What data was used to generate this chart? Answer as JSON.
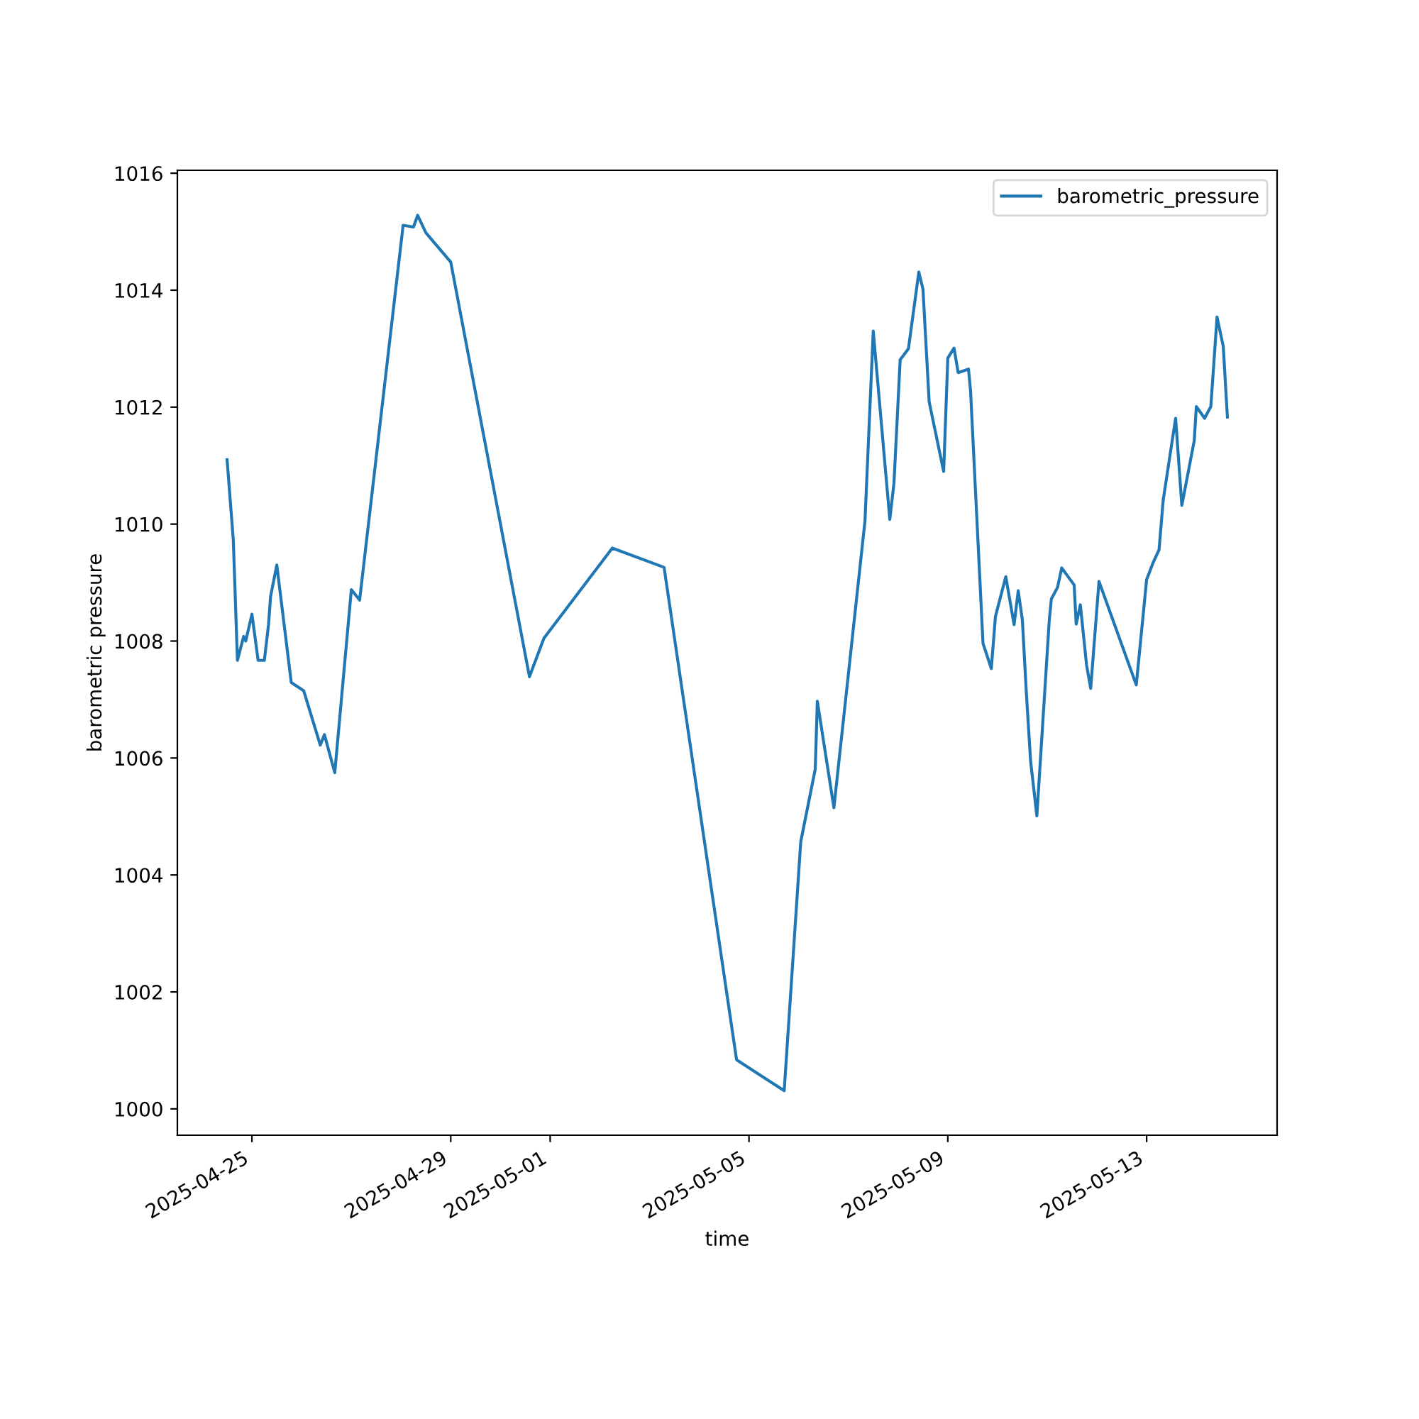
{
  "chart_data": {
    "type": "line",
    "xlabel": "time",
    "ylabel": "barometric pressure",
    "x": [
      "2025-04-24T12:00",
      "2025-04-24T15:00",
      "2025-04-24T17:00",
      "2025-04-24T20:00",
      "2025-04-24T21:00",
      "2025-04-25T00:00",
      "2025-04-25T03:00",
      "2025-04-25T06:00",
      "2025-04-25T08:00",
      "2025-04-25T09:00",
      "2025-04-25T12:00",
      "2025-04-25T19:00",
      "2025-04-26T01:00",
      "2025-04-26T09:00",
      "2025-04-26T11:00",
      "2025-04-26T16:00",
      "2025-04-27T00:00",
      "2025-04-27T04:00",
      "2025-04-28T01:00",
      "2025-04-28T06:00",
      "2025-04-28T08:00",
      "2025-04-28T12:00",
      "2025-04-29T00:00",
      "2025-04-30T14:00",
      "2025-04-30T21:00",
      "2025-05-02T06:00",
      "2025-05-03T07:00",
      "2025-05-04T18:00",
      "2025-05-05T17:00",
      "2025-05-06T01:00",
      "2025-05-06T08:00",
      "2025-05-06T09:00",
      "2025-05-06T17:00",
      "2025-05-07T08:00",
      "2025-05-07T12:00",
      "2025-05-07T20:00",
      "2025-05-07T22:00",
      "2025-05-08T01:00",
      "2025-05-08T05:00",
      "2025-05-08T10:00",
      "2025-05-08T12:00",
      "2025-05-08T15:00",
      "2025-05-08T22:00",
      "2025-05-09T00:00",
      "2025-05-09T03:00",
      "2025-05-09T05:00",
      "2025-05-09T10:00",
      "2025-05-09T11:00",
      "2025-05-09T17:00",
      "2025-05-09T21:00",
      "2025-05-09T23:00",
      "2025-05-10T04:00",
      "2025-05-10T08:00",
      "2025-05-10T10:00",
      "2025-05-10T12:00",
      "2025-05-10T14:00",
      "2025-05-10T16:00",
      "2025-05-10T19:00",
      "2025-05-11T01:00",
      "2025-05-11T02:00",
      "2025-05-11T05:00",
      "2025-05-11T07:00",
      "2025-05-11T13:00",
      "2025-05-11T14:00",
      "2025-05-11T16:00",
      "2025-05-11T19:00",
      "2025-05-11T21:00",
      "2025-05-12T01:00",
      "2025-05-12T19:00",
      "2025-05-13T00:00",
      "2025-05-13T03:00",
      "2025-05-13T06:00",
      "2025-05-13T08:00",
      "2025-05-13T14:00",
      "2025-05-13T17:00",
      "2025-05-13T23:00",
      "2025-05-14T00:00",
      "2025-05-14T04:00",
      "2025-05-14T07:00",
      "2025-05-14T10:00",
      "2025-05-14T13:00",
      "2025-05-14T15:00"
    ],
    "series": [
      {
        "name": "barometric_pressure",
        "color": "#1f77b4",
        "values": [
          1011.1,
          1009.73,
          1007.67,
          1008.08,
          1008.0,
          1008.46,
          1007.67,
          1007.67,
          1008.28,
          1008.76,
          1009.3,
          1007.29,
          1007.15,
          1006.22,
          1006.4,
          1005.75,
          1008.88,
          1008.7,
          1015.11,
          1015.08,
          1015.28,
          1014.98,
          1014.48,
          1007.39,
          1008.05,
          1009.59,
          1009.26,
          1000.84,
          1000.31,
          1004.57,
          1005.81,
          1006.97,
          1005.15,
          1010.05,
          1013.3,
          1010.08,
          1010.7,
          1012.81,
          1013.0,
          1014.31,
          1014.02,
          1012.09,
          1010.9,
          1012.84,
          1013.01,
          1012.59,
          1012.65,
          1012.27,
          1007.96,
          1007.53,
          1008.42,
          1009.1,
          1008.28,
          1008.86,
          1008.36,
          1007.07,
          1005.94,
          1005.01,
          1008.36,
          1008.72,
          1008.92,
          1009.25,
          1008.96,
          1008.29,
          1008.62,
          1007.59,
          1007.19,
          1009.02,
          1007.25,
          1009.05,
          1009.33,
          1009.56,
          1010.41,
          1011.81,
          1010.32,
          1011.43,
          1012.01,
          1011.81,
          1012.01,
          1013.54,
          1013.04,
          1011.83
        ]
      }
    ],
    "xlim": [
      "2025-04-23T12:00",
      "2025-05-15T15:00"
    ],
    "xticks": [
      "2025-04-25",
      "2025-04-29",
      "2025-05-01",
      "2025-05-05",
      "2025-05-09",
      "2025-05-13"
    ],
    "ylim": [
      999.55,
      1016.05
    ],
    "yticks": [
      1000,
      1002,
      1004,
      1006,
      1008,
      1010,
      1012,
      1014,
      1016
    ],
    "legend": "top right",
    "grid": false,
    "marker": "none",
    "line_style": "solid"
  }
}
